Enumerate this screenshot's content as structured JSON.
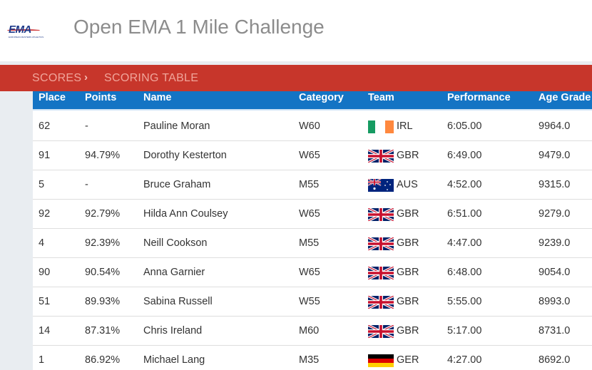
{
  "header": {
    "logo_text": "EMA",
    "logo_subtitle": "EUROPEAN MASTERS ATHLETICS",
    "title": "Open EMA 1 Mile Challenge"
  },
  "breadcrumb": {
    "items": [
      "SCORES",
      "SCORING TABLE"
    ],
    "separator": "›"
  },
  "colors": {
    "breadcrumb_bg": "#c7362b",
    "table_header_bg": "#1474c4",
    "page_bg": "#e9edf1"
  },
  "table": {
    "columns": [
      "Place",
      "Points",
      "Name",
      "Category",
      "Team",
      "Performance",
      "Age Grade"
    ],
    "rows": [
      {
        "place": "62",
        "points": "-",
        "name": "Pauline Moran",
        "category": "W60",
        "team": "IRL",
        "flag": "ireland-flag",
        "performance": "6:05.00",
        "age_grade": "9964.0"
      },
      {
        "place": "91",
        "points": "94.79%",
        "name": "Dorothy Kesterton",
        "category": "W65",
        "team": "GBR",
        "flag": "uk-flag",
        "performance": "6:49.00",
        "age_grade": "9479.0"
      },
      {
        "place": "5",
        "points": "-",
        "name": "Bruce Graham",
        "category": "M55",
        "team": "AUS",
        "flag": "australia-flag",
        "performance": "4:52.00",
        "age_grade": "9315.0"
      },
      {
        "place": "92",
        "points": "92.79%",
        "name": "Hilda Ann Coulsey",
        "category": "W65",
        "team": "GBR",
        "flag": "uk-flag",
        "performance": "6:51.00",
        "age_grade": "9279.0"
      },
      {
        "place": "4",
        "points": "92.39%",
        "name": "Neill Cookson",
        "category": "M55",
        "team": "GBR",
        "flag": "uk-flag",
        "performance": "4:47.00",
        "age_grade": "9239.0"
      },
      {
        "place": "90",
        "points": "90.54%",
        "name": "Anna Garnier",
        "category": "W65",
        "team": "GBR",
        "flag": "uk-flag",
        "performance": "6:48.00",
        "age_grade": "9054.0"
      },
      {
        "place": "51",
        "points": "89.93%",
        "name": "Sabina Russell",
        "category": "W55",
        "team": "GBR",
        "flag": "uk-flag",
        "performance": "5:55.00",
        "age_grade": "8993.0"
      },
      {
        "place": "14",
        "points": "87.31%",
        "name": "Chris Ireland",
        "category": "M60",
        "team": "GBR",
        "flag": "uk-flag",
        "performance": "5:17.00",
        "age_grade": "8731.0"
      },
      {
        "place": "1",
        "points": "86.92%",
        "name": "Michael Lang",
        "category": "M35",
        "team": "GER",
        "flag": "germany-flag",
        "performance": "4:27.00",
        "age_grade": "8692.0"
      }
    ]
  }
}
